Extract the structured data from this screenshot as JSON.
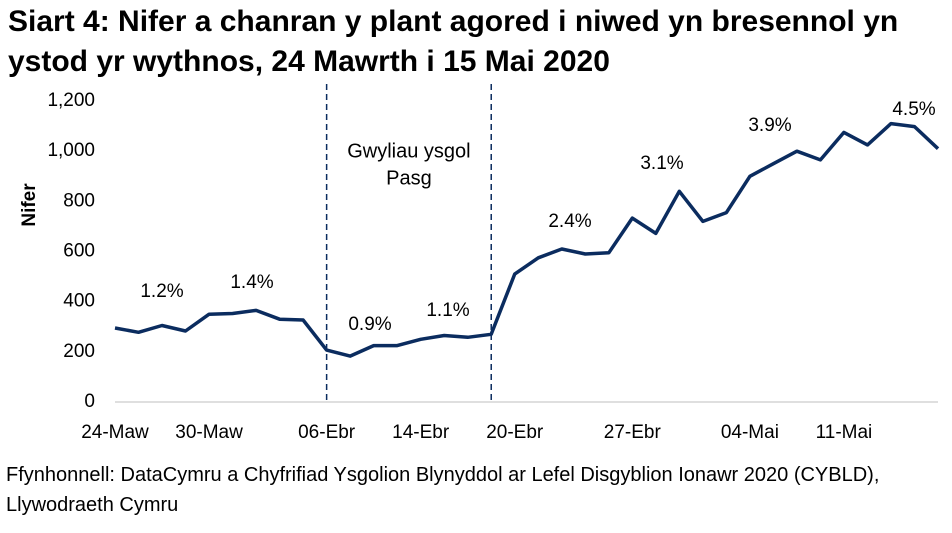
{
  "chart_data": {
    "type": "line",
    "title": "Siart 4: Nifer a chanran y plant agored i niwed yn bresennol yn ystod yr wythnos, 24 Mawrth i 15 Mai 2020",
    "y_label": "Nifer",
    "categories": [
      "24-Maw",
      null,
      null,
      null,
      "30-Maw",
      null,
      null,
      null,
      null,
      "06-Ebr",
      null,
      null,
      null,
      "14-Ebr",
      null,
      null,
      null,
      "20-Ebr",
      null,
      null,
      null,
      null,
      "27-Ebr",
      null,
      null,
      null,
      null,
      "04-Mai",
      null,
      null,
      null,
      "11-Mai",
      null,
      null,
      null,
      null
    ],
    "values": [
      295,
      278,
      305,
      283,
      350,
      353,
      365,
      330,
      327,
      207,
      183,
      225,
      225,
      250,
      265,
      258,
      270,
      510,
      575,
      610,
      590,
      595,
      733,
      672,
      840,
      720,
      755,
      900,
      950,
      1000,
      965,
      1075,
      1025,
      1110,
      1098,
      1010
    ],
    "color": "#0b2c5f",
    "ylim": [
      0,
      1200
    ],
    "yticks": [
      0,
      200,
      400,
      600,
      800,
      {
        "value": 1000,
        "label": "1,000"
      },
      {
        "value": 1200,
        "label": "1,200"
      }
    ],
    "annotations": [
      "1.2%",
      "1.4%",
      "0.9%",
      "1.1%",
      "2.4%",
      "3.1%",
      "3.9%",
      "4.5%"
    ],
    "period_label": [
      "Gwyliau ysgol",
      "Pasg"
    ],
    "source": "Ffynhonnell: DataCymru a Chyfrifiad Ysgolion Blynyddol ar Lefel Disgyblion Ionawr 2020 (CYBLD), Llywodraeth Cymru"
  }
}
